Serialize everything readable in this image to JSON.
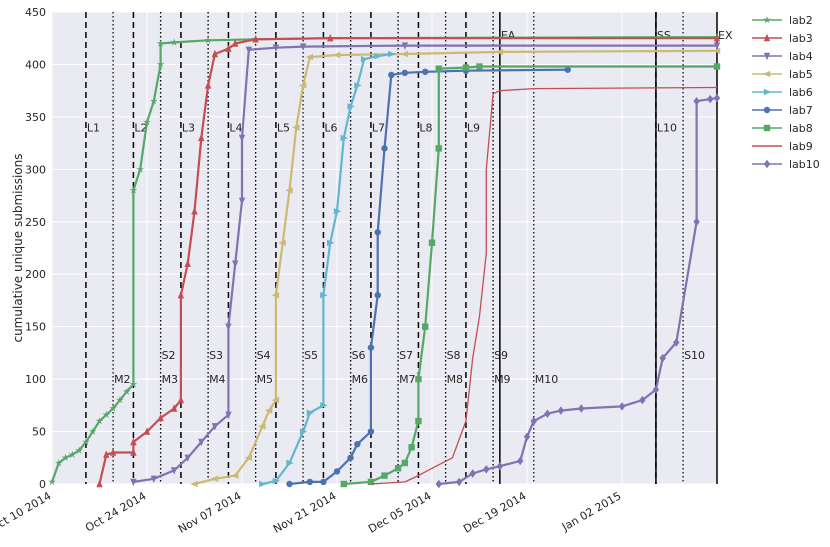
{
  "chart_data": {
    "type": "line",
    "title": "",
    "xlabel": "",
    "ylabel": "cumulative unique submissions",
    "ylim": [
      0,
      450
    ],
    "xlim": [
      "2014-10-10",
      "2015-01-16"
    ],
    "x_ticks": [
      {
        "date": "2014-10-10",
        "label": "Oct 10 2014"
      },
      {
        "date": "2014-10-24",
        "label": "Oct 24 2014"
      },
      {
        "date": "2014-11-07",
        "label": "Nov 07 2014"
      },
      {
        "date": "2014-11-21",
        "label": "Nov 21 2014"
      },
      {
        "date": "2014-12-05",
        "label": "Dec 05 2014"
      },
      {
        "date": "2014-12-19",
        "label": "Dec 19 2014"
      },
      {
        "date": "2015-01-02",
        "label": "Jan 02 2015"
      }
    ],
    "y_ticks": [
      0,
      50,
      100,
      150,
      200,
      250,
      300,
      350,
      400,
      450
    ],
    "grid": true,
    "background": "#eaeaf2",
    "legend_position": "outside-right",
    "annotations": [
      {
        "label": "L1",
        "date": "2014-10-15",
        "style": "dashed",
        "y": 340
      },
      {
        "label": "L2",
        "date": "2014-10-22",
        "style": "dashed",
        "y": 340
      },
      {
        "label": "L3",
        "date": "2014-10-29",
        "style": "dashed",
        "y": 340
      },
      {
        "label": "L4",
        "date": "2014-11-05",
        "style": "dashed",
        "y": 340
      },
      {
        "label": "L5",
        "date": "2014-11-12",
        "style": "dashed",
        "y": 340
      },
      {
        "label": "L6",
        "date": "2014-11-19",
        "style": "dashed",
        "y": 340
      },
      {
        "label": "L7",
        "date": "2014-11-26",
        "style": "dashed",
        "y": 340
      },
      {
        "label": "L8",
        "date": "2014-12-03",
        "style": "dashed",
        "y": 340
      },
      {
        "label": "L9",
        "date": "2014-12-10",
        "style": "dashed",
        "y": 340
      },
      {
        "label": "L10",
        "date": "2015-01-07",
        "style": "dashed",
        "y": 340
      },
      {
        "label": "M2",
        "date": "2014-10-19",
        "style": "dotted",
        "y": 100
      },
      {
        "label": "M3",
        "date": "2014-10-26",
        "style": "dotted",
        "y": 100
      },
      {
        "label": "M4",
        "date": "2014-11-02",
        "style": "dotted",
        "y": 100
      },
      {
        "label": "M5",
        "date": "2014-11-09",
        "style": "dotted",
        "y": 100
      },
      {
        "label": "M6",
        "date": "2014-11-23",
        "style": "dotted",
        "y": 100
      },
      {
        "label": "M7",
        "date": "2014-11-30",
        "style": "dotted",
        "y": 100
      },
      {
        "label": "M8",
        "date": "2014-12-07",
        "style": "dotted",
        "y": 100
      },
      {
        "label": "M9",
        "date": "2014-12-14",
        "style": "dotted",
        "y": 100
      },
      {
        "label": "M10",
        "date": "2014-12-20",
        "style": "dotted",
        "y": 100
      },
      {
        "label": "S2",
        "date": "2014-10-26",
        "style": "dotted",
        "y": 123
      },
      {
        "label": "S3",
        "date": "2014-11-02",
        "style": "dotted",
        "y": 123
      },
      {
        "label": "S4",
        "date": "2014-11-09",
        "style": "dotted",
        "y": 123
      },
      {
        "label": "S5",
        "date": "2014-11-16",
        "style": "dotted",
        "y": 123
      },
      {
        "label": "S6",
        "date": "2014-11-23",
        "style": "dotted",
        "y": 123
      },
      {
        "label": "S7",
        "date": "2014-11-30",
        "style": "dotted",
        "y": 123
      },
      {
        "label": "S8",
        "date": "2014-12-07",
        "style": "dotted",
        "y": 123
      },
      {
        "label": "S9",
        "date": "2014-12-14",
        "style": "dotted",
        "y": 123
      },
      {
        "label": "S10",
        "date": "2015-01-11",
        "style": "dotted",
        "y": 123
      },
      {
        "label": "EA",
        "date": "2014-12-15",
        "style": "solid",
        "y": 428
      },
      {
        "label": "SS",
        "date": "2015-01-07",
        "style": "solid",
        "y": 428
      },
      {
        "label": "EX",
        "date": "2015-01-16",
        "style": "solid",
        "y": 428
      }
    ],
    "series": [
      {
        "name": "lab2",
        "color": "#55a868",
        "marker": "star",
        "points": [
          [
            "2014-10-10",
            2
          ],
          [
            "2014-10-11",
            20
          ],
          [
            "2014-10-12",
            25
          ],
          [
            "2014-10-13",
            28
          ],
          [
            "2014-10-14",
            32
          ],
          [
            "2014-10-15",
            40
          ],
          [
            "2014-10-16",
            50
          ],
          [
            "2014-10-17",
            60
          ],
          [
            "2014-10-18",
            66
          ],
          [
            "2014-10-19",
            72
          ],
          [
            "2014-10-20",
            80
          ],
          [
            "2014-10-21",
            88
          ],
          [
            "2014-10-22",
            95
          ],
          [
            "2014-10-22",
            280
          ],
          [
            "2014-10-23",
            300
          ],
          [
            "2014-10-24",
            345
          ],
          [
            "2014-10-25",
            365
          ],
          [
            "2014-10-26",
            400
          ],
          [
            "2014-10-26",
            420
          ],
          [
            "2014-10-28",
            421
          ],
          [
            "2014-11-02",
            423
          ],
          [
            "2014-11-09",
            424
          ],
          [
            "2014-11-20",
            425
          ],
          [
            "2015-01-16",
            426
          ]
        ]
      },
      {
        "name": "lab3",
        "color": "#c44e52",
        "marker": "triangle-up",
        "points": [
          [
            "2014-10-17",
            0
          ],
          [
            "2014-10-18",
            28
          ],
          [
            "2014-10-19",
            30
          ],
          [
            "2014-10-22",
            30
          ],
          [
            "2014-10-22",
            40
          ],
          [
            "2014-10-24",
            50
          ],
          [
            "2014-10-26",
            63
          ],
          [
            "2014-10-28",
            72
          ],
          [
            "2014-10-29",
            80
          ],
          [
            "2014-10-29",
            180
          ],
          [
            "2014-10-30",
            210
          ],
          [
            "2014-10-31",
            260
          ],
          [
            "2014-11-01",
            330
          ],
          [
            "2014-11-02",
            380
          ],
          [
            "2014-11-03",
            410
          ],
          [
            "2014-11-05",
            415
          ],
          [
            "2014-11-06",
            420
          ],
          [
            "2014-11-09",
            424
          ],
          [
            "2014-11-20",
            425
          ],
          [
            "2015-01-16",
            425
          ]
        ]
      },
      {
        "name": "lab4",
        "color": "#8172b2",
        "marker": "triangle-down",
        "points": [
          [
            "2014-10-22",
            2
          ],
          [
            "2014-10-25",
            5
          ],
          [
            "2014-10-28",
            13
          ],
          [
            "2014-10-30",
            25
          ],
          [
            "2014-11-01",
            40
          ],
          [
            "2014-11-03",
            55
          ],
          [
            "2014-11-05",
            66
          ],
          [
            "2014-11-05",
            150
          ],
          [
            "2014-11-06",
            210
          ],
          [
            "2014-11-07",
            270
          ],
          [
            "2014-11-07",
            330
          ],
          [
            "2014-11-08",
            414
          ],
          [
            "2014-11-12",
            416
          ],
          [
            "2014-11-16",
            417
          ],
          [
            "2014-12-01",
            418
          ],
          [
            "2015-01-16",
            418
          ]
        ]
      },
      {
        "name": "lab5",
        "color": "#ccb974",
        "marker": "triangle-left",
        "points": [
          [
            "2014-10-31",
            0
          ],
          [
            "2014-11-03",
            5
          ],
          [
            "2014-11-06",
            8
          ],
          [
            "2014-11-08",
            25
          ],
          [
            "2014-11-10",
            55
          ],
          [
            "2014-11-11",
            70
          ],
          [
            "2014-11-12",
            80
          ],
          [
            "2014-11-12",
            180
          ],
          [
            "2014-11-13",
            230
          ],
          [
            "2014-11-14",
            280
          ],
          [
            "2014-11-15",
            340
          ],
          [
            "2014-11-16",
            380
          ],
          [
            "2014-11-17",
            407
          ],
          [
            "2014-11-21",
            409
          ],
          [
            "2014-12-01",
            410
          ],
          [
            "2014-12-15",
            412
          ],
          [
            "2015-01-16",
            413
          ]
        ]
      },
      {
        "name": "lab6",
        "color": "#64b5cd",
        "marker": "triangle-right",
        "points": [
          [
            "2014-11-10",
            0
          ],
          [
            "2014-11-12",
            3
          ],
          [
            "2014-11-14",
            20
          ],
          [
            "2014-11-16",
            50
          ],
          [
            "2014-11-17",
            68
          ],
          [
            "2014-11-19",
            75
          ],
          [
            "2014-11-19",
            180
          ],
          [
            "2014-11-20",
            230
          ],
          [
            "2014-11-21",
            260
          ],
          [
            "2014-11-22",
            330
          ],
          [
            "2014-11-23",
            360
          ],
          [
            "2014-11-24",
            380
          ],
          [
            "2014-11-25",
            405
          ],
          [
            "2014-11-27",
            408
          ],
          [
            "2014-11-29",
            410
          ]
        ]
      },
      {
        "name": "lab7",
        "color": "#4c72b0",
        "marker": "circle",
        "points": [
          [
            "2014-11-14",
            0
          ],
          [
            "2014-11-17",
            2
          ],
          [
            "2014-11-19",
            2
          ],
          [
            "2014-11-21",
            12
          ],
          [
            "2014-11-23",
            25
          ],
          [
            "2014-11-24",
            38
          ],
          [
            "2014-11-26",
            50
          ],
          [
            "2014-11-26",
            130
          ],
          [
            "2014-11-27",
            180
          ],
          [
            "2014-11-27",
            240
          ],
          [
            "2014-11-28",
            320
          ],
          [
            "2014-11-29",
            390
          ],
          [
            "2014-12-01",
            392
          ],
          [
            "2014-12-04",
            393
          ],
          [
            "2014-12-10",
            394
          ],
          [
            "2014-12-25",
            395
          ]
        ]
      },
      {
        "name": "lab8",
        "color": "#55a868",
        "marker": "square",
        "points": [
          [
            "2014-11-22",
            0
          ],
          [
            "2014-11-26",
            2
          ],
          [
            "2014-11-28",
            8
          ],
          [
            "2014-11-30",
            15
          ],
          [
            "2014-12-01",
            20
          ],
          [
            "2014-12-02",
            35
          ],
          [
            "2014-12-03",
            60
          ],
          [
            "2014-12-03",
            100
          ],
          [
            "2014-12-04",
            150
          ],
          [
            "2014-12-05",
            230
          ],
          [
            "2014-12-06",
            320
          ],
          [
            "2014-12-06",
            396
          ],
          [
            "2014-12-10",
            397
          ],
          [
            "2014-12-12",
            398
          ],
          [
            "2015-01-16",
            398
          ]
        ]
      },
      {
        "name": "lab9",
        "color": "#c44e52",
        "marker": "none",
        "points": [
          [
            "2014-11-26",
            0
          ],
          [
            "2014-12-01",
            2
          ],
          [
            "2014-12-03",
            8
          ],
          [
            "2014-12-05",
            15
          ],
          [
            "2014-12-08",
            25
          ],
          [
            "2014-12-10",
            60
          ],
          [
            "2014-12-11",
            120
          ],
          [
            "2014-12-12",
            160
          ],
          [
            "2014-12-13",
            220
          ],
          [
            "2014-12-13",
            300
          ],
          [
            "2014-12-14",
            372
          ],
          [
            "2014-12-15",
            375
          ],
          [
            "2014-12-20",
            377
          ],
          [
            "2015-01-16",
            378
          ]
        ]
      },
      {
        "name": "lab10",
        "color": "#8172b2",
        "marker": "diamond",
        "points": [
          [
            "2014-12-06",
            0
          ],
          [
            "2014-12-09",
            2
          ],
          [
            "2014-12-11",
            10
          ],
          [
            "2014-12-13",
            14
          ],
          [
            "2014-12-15",
            17
          ],
          [
            "2014-12-18",
            22
          ],
          [
            "2014-12-19",
            45
          ],
          [
            "2014-12-20",
            60
          ],
          [
            "2014-12-22",
            67
          ],
          [
            "2014-12-24",
            70
          ],
          [
            "2014-12-27",
            72
          ],
          [
            "2015-01-02",
            74
          ],
          [
            "2015-01-05",
            80
          ],
          [
            "2015-01-07",
            90
          ],
          [
            "2015-01-08",
            120
          ],
          [
            "2015-01-10",
            135
          ],
          [
            "2015-01-13",
            250
          ],
          [
            "2015-01-13",
            365
          ],
          [
            "2015-01-15",
            367
          ],
          [
            "2015-01-16",
            368
          ]
        ]
      }
    ]
  }
}
